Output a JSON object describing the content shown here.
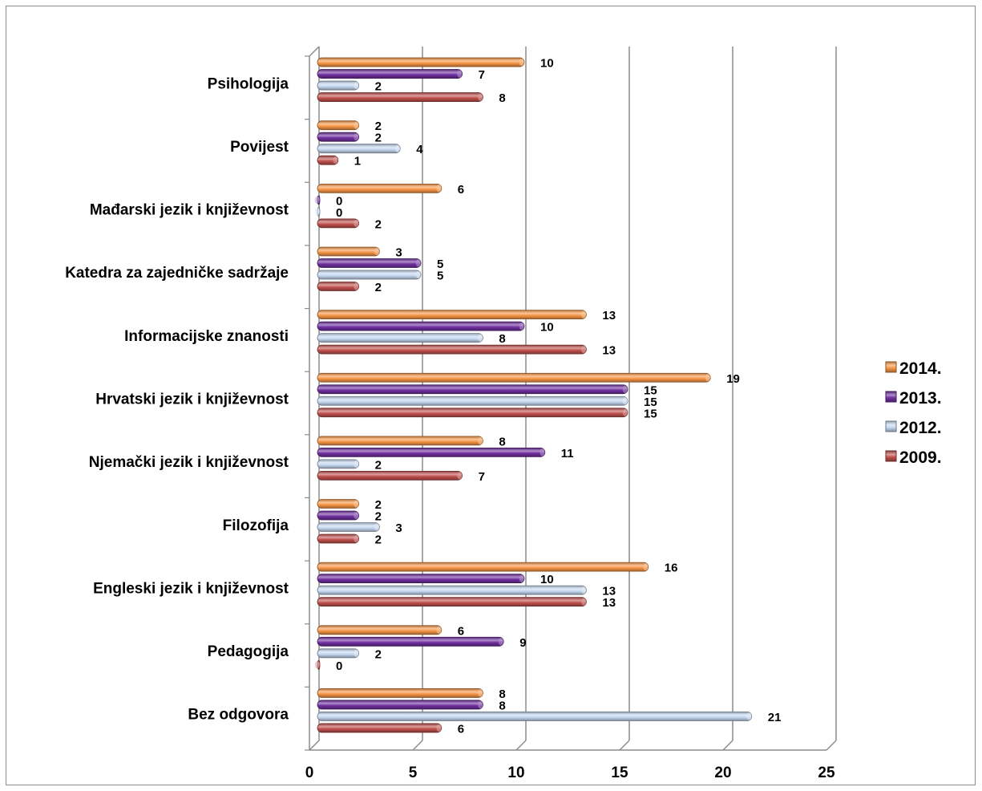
{
  "chart_data": {
    "type": "bar",
    "orientation": "horizontal",
    "categories": [
      "Psihologija",
      "Povijest",
      "Mađarski jezik i književnost",
      "Katedra za zajedničke sadržaje",
      "Informacijske znanosti",
      "Hrvatski jezik i književnost",
      "Njemački jezik i književnost",
      "Filozofija",
      "Engleski jezik i književnost",
      "Pedagogija",
      "Bez odgovora"
    ],
    "series": [
      {
        "name": "2014.",
        "color": "#f79646",
        "values": [
          10,
          2,
          6,
          3,
          13,
          19,
          8,
          2,
          16,
          6,
          8
        ]
      },
      {
        "name": "2013.",
        "color": "#7030a0",
        "values": [
          7,
          2,
          0,
          5,
          10,
          15,
          11,
          2,
          10,
          9,
          8
        ]
      },
      {
        "name": "2012.",
        "color": "#c6d9f1",
        "values": [
          2,
          4,
          0,
          5,
          8,
          15,
          2,
          3,
          13,
          2,
          21
        ]
      },
      {
        "name": "2009.",
        "color": "#c0504d",
        "values": [
          8,
          1,
          2,
          2,
          13,
          15,
          7,
          2,
          13,
          0,
          6
        ]
      }
    ],
    "xlim": [
      0,
      25
    ],
    "xticks": [
      "0",
      "5",
      "10",
      "15",
      "20",
      "25"
    ],
    "grid": true,
    "legend_position": "right"
  }
}
